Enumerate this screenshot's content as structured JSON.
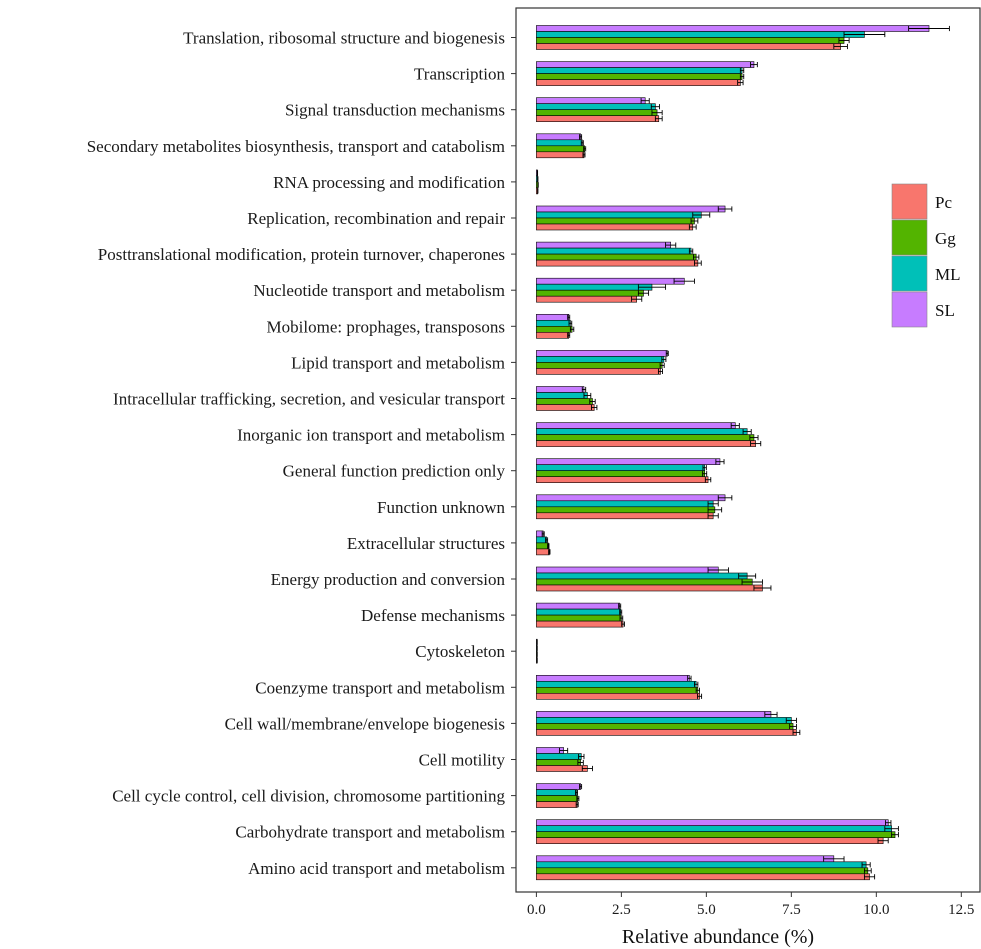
{
  "chart_data": {
    "type": "bar",
    "orientation": "horizontal",
    "title": "",
    "xlabel": "Relative abundance (%)",
    "ylabel": "",
    "xlim": [
      -0.6,
      13.05
    ],
    "xticks": [
      0.0,
      2.5,
      5.0,
      7.5,
      10.0,
      12.5
    ],
    "xtick_labels": [
      "0.0",
      "2.5",
      "5.0",
      "7.5",
      "10.0",
      "12.5"
    ],
    "grid": false,
    "legend": "right",
    "categories": [
      "Translation, ribosomal structure and biogenesis",
      "Transcription",
      "Signal transduction mechanisms",
      "Secondary metabolites biosynthesis, transport and catabolism",
      "RNA processing and modification",
      "Replication, recombination and repair",
      "Posttranslational modification, protein turnover, chaperones",
      "Nucleotide transport and metabolism",
      "Mobilome: prophages, transposons",
      "Lipid transport and metabolism",
      "Intracellular trafficking, secretion, and vesicular transport",
      "Inorganic ion transport and metabolism",
      "General function prediction only",
      "Function unknown",
      "Extracellular structures",
      "Energy production and conversion",
      "Defense mechanisms",
      "Cytoskeleton",
      "Coenzyme transport and metabolism",
      "Cell wall/membrane/envelope biogenesis",
      "Cell motility",
      "Cell cycle control, cell division, chromosome partitioning",
      "Carbohydrate transport and metabolism",
      "Amino acid transport and metabolism"
    ],
    "series": [
      {
        "name": "Pc",
        "color": "#F8766D",
        "values": [
          8.95,
          6.0,
          3.6,
          1.4,
          0.04,
          4.6,
          4.75,
          2.95,
          0.95,
          3.65,
          1.7,
          6.45,
          5.05,
          5.2,
          0.38,
          6.65,
          2.55,
          0.02,
          4.8,
          7.65,
          1.5,
          1.2,
          10.2,
          9.8
        ],
        "errors": [
          0.2,
          0.08,
          0.1,
          0.03,
          0.005,
          0.1,
          0.1,
          0.15,
          0.03,
          0.06,
          0.08,
          0.15,
          0.08,
          0.15,
          0.02,
          0.25,
          0.04,
          0.005,
          0.06,
          0.1,
          0.15,
          0.03,
          0.15,
          0.15
        ]
      },
      {
        "name": "Gg",
        "color": "#53B400",
        "values": [
          9.05,
          6.05,
          3.55,
          1.42,
          0.05,
          4.65,
          4.7,
          3.15,
          1.05,
          3.7,
          1.65,
          6.4,
          4.95,
          5.25,
          0.35,
          6.35,
          2.5,
          0.02,
          4.75,
          7.55,
          1.3,
          1.22,
          10.55,
          9.75
        ],
        "errors": [
          0.15,
          0.05,
          0.15,
          0.03,
          0.005,
          0.1,
          0.08,
          0.15,
          0.05,
          0.06,
          0.08,
          0.12,
          0.06,
          0.2,
          0.02,
          0.3,
          0.04,
          0.005,
          0.05,
          0.1,
          0.08,
          0.03,
          0.1,
          0.1
        ]
      },
      {
        "name": "ML",
        "color": "#00C0B8",
        "values": [
          9.65,
          6.05,
          3.5,
          1.35,
          0.04,
          4.85,
          4.55,
          3.4,
          1.0,
          3.75,
          1.5,
          6.2,
          4.95,
          5.2,
          0.3,
          6.2,
          2.48,
          0.02,
          4.7,
          7.5,
          1.32,
          1.18,
          10.45,
          9.7
        ],
        "errors": [
          0.6,
          0.05,
          0.12,
          0.03,
          0.005,
          0.25,
          0.05,
          0.4,
          0.04,
          0.06,
          0.1,
          0.12,
          0.05,
          0.15,
          0.03,
          0.25,
          0.03,
          0.005,
          0.05,
          0.15,
          0.08,
          0.03,
          0.2,
          0.12
        ]
      },
      {
        "name": "SL",
        "color": "#C77CFF",
        "values": [
          11.55,
          6.4,
          3.2,
          1.3,
          0.03,
          5.55,
          3.95,
          4.35,
          0.95,
          3.85,
          1.4,
          5.85,
          5.4,
          5.55,
          0.2,
          5.35,
          2.45,
          0.02,
          4.5,
          6.9,
          0.8,
          1.3,
          10.35,
          8.75
        ],
        "errors": [
          0.6,
          0.1,
          0.12,
          0.03,
          0.005,
          0.2,
          0.15,
          0.3,
          0.03,
          0.03,
          0.05,
          0.12,
          0.12,
          0.2,
          0.03,
          0.3,
          0.03,
          0.005,
          0.05,
          0.18,
          0.12,
          0.03,
          0.08,
          0.3
        ]
      }
    ]
  }
}
